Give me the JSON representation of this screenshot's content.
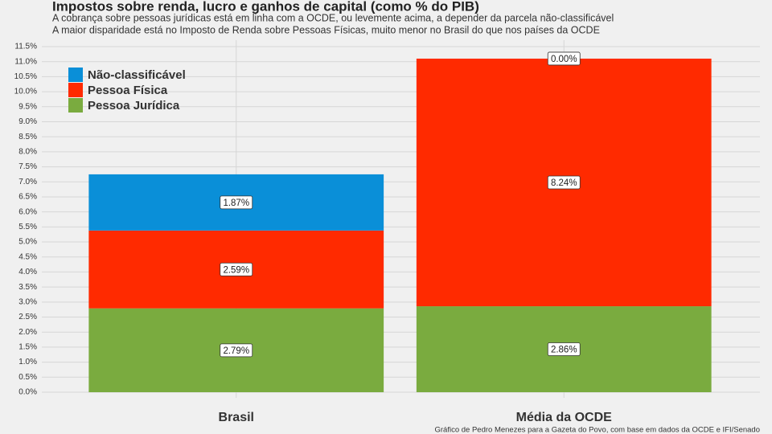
{
  "chart_data": {
    "type": "stacked_bar",
    "title": "Impostos sobre renda, lucro e ganhos de capital (como % do PIB)",
    "subtitle": [
      "A cobrança sobre pessoas jurídicas está em linha com a OCDE, ou levemente acima, a depender da parcela não-classificável",
      "A maior disparidade está no Imposto de Renda sobre Pessoas Físicas, muito menor no Brasil do que nos países da OCDE"
    ],
    "caption": "Gráfico de Pedro Menezes para a Gazeta do Povo, com base em dados da OCDE e IFI/Senado",
    "categories": [
      "Brasil",
      "Média da OCDE"
    ],
    "series": [
      {
        "name": "Pessoa Jurídica",
        "color": "#7aab3f",
        "values": [
          2.79,
          2.86
        ],
        "value_labels": [
          "2.79%",
          "2.86%"
        ]
      },
      {
        "name": "Pessoa Física",
        "color": "#ff2a00",
        "values": [
          2.59,
          8.24
        ],
        "value_labels": [
          "2.59%",
          "8.24%"
        ]
      },
      {
        "name": "Não-classificável",
        "color": "#0a8fd8",
        "values": [
          1.87,
          0.0
        ],
        "value_labels": [
          "1.87%",
          "0.00%"
        ]
      }
    ],
    "ylim": [
      0,
      11.5
    ],
    "yticks": [
      {
        "value": 0,
        "label": "0.0%"
      },
      {
        "value": 0.5,
        "label": "0.5%"
      },
      {
        "value": 1,
        "label": "1.0%"
      },
      {
        "value": 1.5,
        "label": "1.5%"
      },
      {
        "value": 2,
        "label": "2.0%"
      },
      {
        "value": 2.5,
        "label": "2.5%"
      },
      {
        "value": 3,
        "label": "3.0%"
      },
      {
        "value": 3.5,
        "label": "3.5%"
      },
      {
        "value": 4,
        "label": "4.0%"
      },
      {
        "value": 4.5,
        "label": "4.5%"
      },
      {
        "value": 5,
        "label": "5.0%"
      },
      {
        "value": 5.5,
        "label": "5.5%"
      },
      {
        "value": 6,
        "label": "6.0%"
      },
      {
        "value": 6.5,
        "label": "6.5%"
      },
      {
        "value": 7,
        "label": "7.0%"
      },
      {
        "value": 7.5,
        "label": "7.5%"
      },
      {
        "value": 8,
        "label": "8.0%"
      },
      {
        "value": 8.5,
        "label": "8.5%"
      },
      {
        "value": 9,
        "label": "9.0%"
      },
      {
        "value": 9.5,
        "label": "9.5%"
      },
      {
        "value": 10,
        "label": "10.0%"
      },
      {
        "value": 10.5,
        "label": "10.5%"
      },
      {
        "value": 11,
        "label": "11.0%"
      },
      {
        "value": 11.5,
        "label": "11.5%"
      }
    ],
    "grid": true,
    "legend": "top-left"
  }
}
